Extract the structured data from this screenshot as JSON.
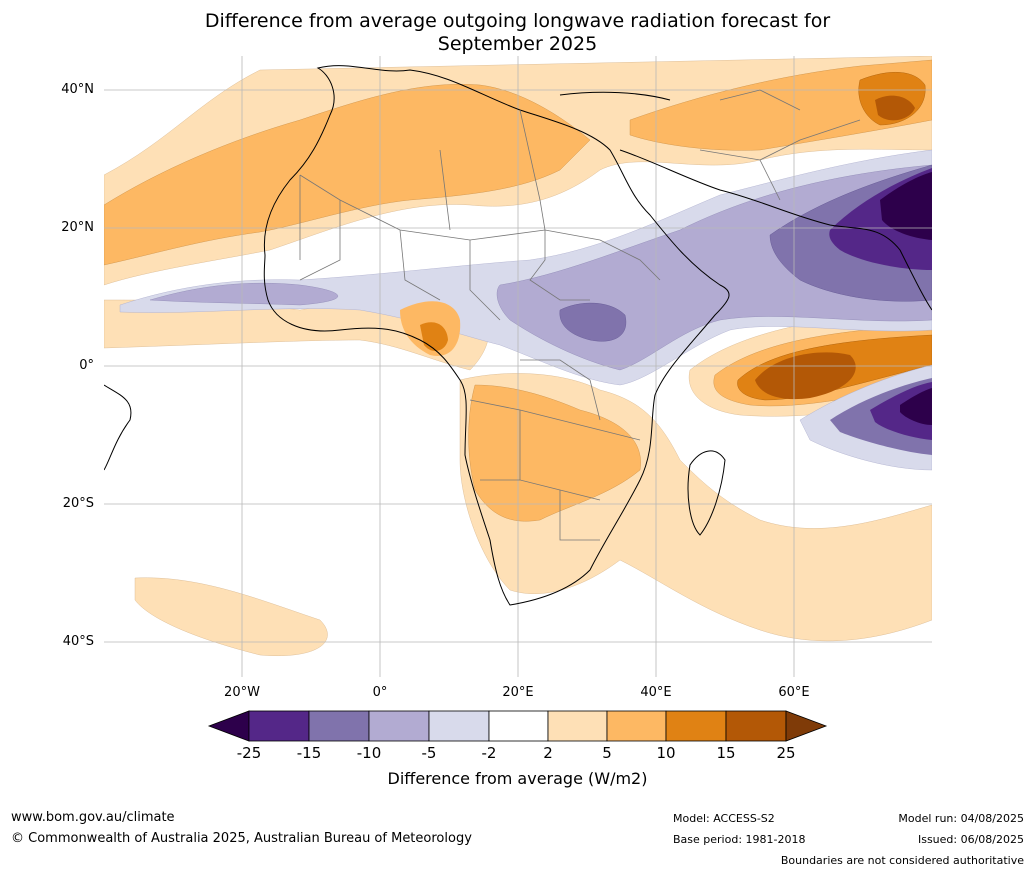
{
  "title": {
    "line1": "Difference from average outgoing longwave radiation forecast for",
    "line2": "September 2025"
  },
  "map": {
    "lat_labels": [
      "40°N",
      "20°N",
      "0°",
      "20°S",
      "40°S"
    ],
    "lon_labels": [
      "20°W",
      "0°",
      "20°E",
      "40°E",
      "60°E"
    ],
    "extent": {
      "lon": [
        -40,
        80
      ],
      "lat": [
        -45,
        45
      ]
    }
  },
  "legend": {
    "ticks": [
      "-25",
      "-15",
      "-10",
      "-5",
      "-2",
      "2",
      "5",
      "10",
      "15",
      "25"
    ],
    "colors": [
      "#2d004b",
      "#542788",
      "#8073ac",
      "#b2abd2",
      "#d8daeb",
      "#ffffff",
      "#fee0b6",
      "#fdb863",
      "#e08214",
      "#b35806",
      "#7f3b08"
    ],
    "title": "Difference from average (W/m2)"
  },
  "footer": {
    "url": "www.bom.gov.au/climate",
    "copyright": "© Commonwealth of Australia 2025, Australian Bureau of Meteorology",
    "model": "Model: ACCESS-S2",
    "base_period": "Base period: 1981-2018",
    "model_run": "Model run: 04/08/2025",
    "issued": "Issued: 06/08/2025",
    "disclaimer": "Boundaries are not considered authoritative"
  }
}
